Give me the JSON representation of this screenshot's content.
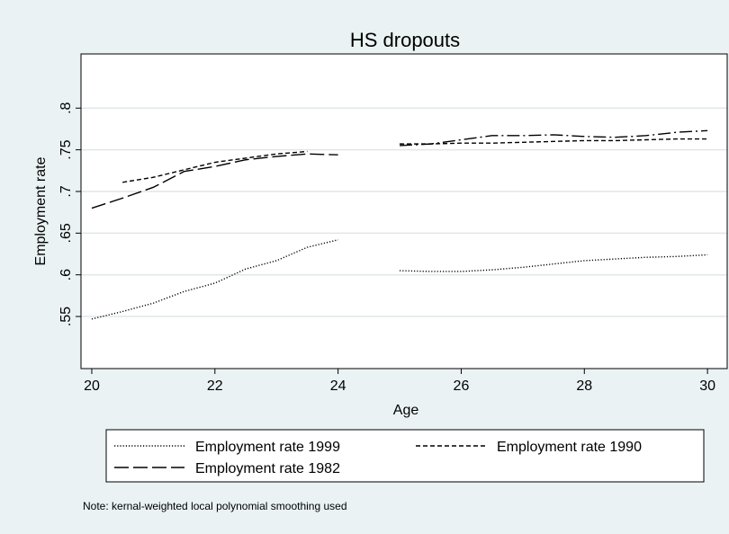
{
  "chart_data": {
    "type": "line",
    "title": "HS dropouts",
    "x_label": "Age",
    "y_label": "Employment rate",
    "note": "Note: kernal-weighted local polynomial smoothing used",
    "x": [
      20,
      20.5,
      21,
      21.5,
      22,
      22.5,
      23,
      23.5,
      24,
      24.5,
      25,
      25.5,
      26,
      26.5,
      27,
      27.5,
      28,
      28.5,
      29,
      29.5,
      30
    ],
    "series": [
      {
        "name": "Employment rate 1999",
        "color": "#000000",
        "dash": "dotted",
        "values": [
          0.547,
          0.556,
          0.566,
          0.58,
          0.59,
          0.607,
          0.617,
          0.633,
          0.642,
          null,
          0.605,
          0.604,
          0.604,
          0.606,
          0.609,
          0.613,
          0.617,
          0.619,
          0.621,
          0.622,
          0.624
        ]
      },
      {
        "name": "Employment rate 1990",
        "color": "#000000",
        "dash": "short-dash",
        "values": [
          null,
          0.711,
          0.717,
          0.726,
          0.735,
          0.74,
          0.745,
          0.748,
          null,
          null,
          0.757,
          0.757,
          0.758,
          0.758,
          0.759,
          0.76,
          0.761,
          0.761,
          0.762,
          0.763,
          0.763
        ]
      },
      {
        "name": "Employment rate 1982",
        "color": "#000000",
        "dash": "long-dash",
        "values": [
          0.68,
          0.692,
          0.705,
          0.724,
          0.73,
          0.738,
          0.742,
          0.745,
          0.744,
          null,
          null,
          null,
          null,
          null,
          null,
          null,
          null,
          null,
          null,
          null,
          null
        ]
      },
      {
        "color": "#000000",
        "dash": "dash-dot",
        "values": [
          null,
          null,
          null,
          null,
          null,
          null,
          null,
          null,
          null,
          null,
          0.755,
          0.757,
          0.762,
          0.767,
          0.767,
          0.768,
          0.766,
          0.765,
          0.767,
          0.771,
          0.773
        ]
      }
    ],
    "xlim": [
      19.825,
      30.32
    ],
    "xticks": [
      20,
      22,
      24,
      26,
      28,
      30
    ],
    "ylim": [
      0.4875,
      0.865
    ],
    "yticks": [
      {
        "value": 0.55,
        "label": ".55"
      },
      {
        "value": 0.6,
        "label": ".6"
      },
      {
        "value": 0.65,
        "label": ".65"
      },
      {
        "value": 0.7,
        "label": ".7"
      },
      {
        "value": 0.75,
        "label": ".75"
      },
      {
        "value": 0.8,
        "label": ".8"
      }
    ],
    "grid": true,
    "legend": "bottom"
  }
}
